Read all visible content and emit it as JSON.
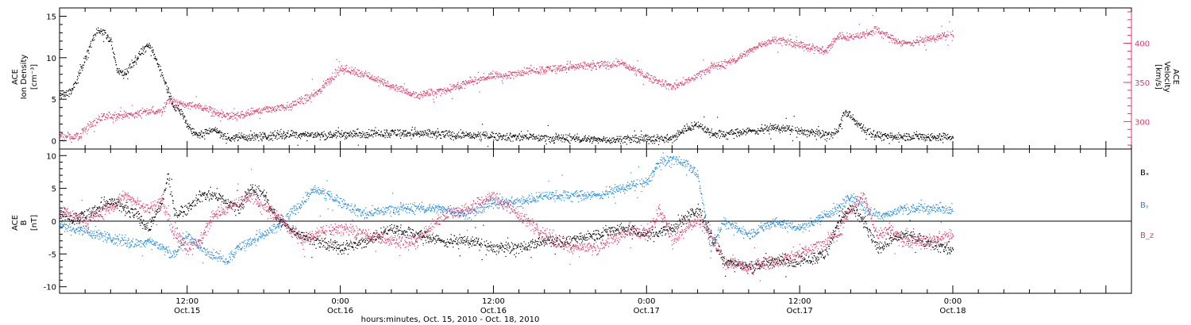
{
  "chart_data": [
    {
      "type": "scatter",
      "panel": "top",
      "ylabel_left": [
        "ACE",
        "Ion Density",
        "[cm⁻³]"
      ],
      "ylabel_right": [
        "ACE",
        "Velocity",
        "[km/s]"
      ],
      "ylim_left": [
        -1,
        16
      ],
      "ylim_right": [
        265,
        445
      ],
      "yticks_left": [
        "0",
        "5",
        "10",
        "15"
      ],
      "yticks_left_values": [
        0,
        5,
        10,
        15
      ],
      "yticks_right": [
        "300",
        "350",
        "400"
      ],
      "yticks_right_values": [
        300,
        350,
        400
      ],
      "series": [
        {
          "axis": "left",
          "color": "#000000",
          "knots_h": [
            0,
            0.5,
            1,
            1.5,
            2,
            2.5,
            3,
            3.5,
            4,
            4.5,
            5,
            5.5,
            6,
            6.5,
            7,
            7.5,
            8,
            8.5,
            9,
            9.5,
            10,
            10.5,
            11,
            11.5,
            12,
            12.5,
            13,
            13.5,
            14,
            15,
            16,
            17,
            18,
            20,
            22,
            24,
            26,
            28,
            30,
            32,
            34,
            36,
            38,
            40,
            42,
            44,
            46,
            48,
            49,
            50,
            51,
            52,
            54,
            56,
            58,
            60,
            60.5,
            61,
            61.5,
            62,
            62.5,
            63,
            63.5,
            64,
            64.5,
            65,
            66,
            67,
            68,
            70
          ],
          "knots_v": [
            5.5,
            5.8,
            6.2,
            8,
            10,
            12,
            13.5,
            13,
            12,
            8.5,
            8,
            9,
            10,
            11,
            11.5,
            10,
            8,
            6,
            4,
            3.5,
            2,
            1,
            0.8,
            1,
            1.5,
            1,
            0.5,
            0.4,
            0.5,
            0.5,
            0.6,
            0.7,
            0.8,
            0.7,
            0.8,
            0.9,
            1.0,
            0.9,
            0.8,
            0.7,
            0.6,
            0.5,
            0.4,
            0.3,
            0.2,
            0.2,
            0.3,
            0.3,
            1.5,
            2,
            1,
            0.8,
            1.2,
            1.6,
            1.2,
            0.8,
            0.7,
            1.5,
            3.5,
            3,
            2,
            1.5,
            1,
            0.8,
            0.6,
            0.5,
            0.5,
            0.6,
            0.5,
            0.5
          ],
          "noise": 0.45
        },
        {
          "axis": "right",
          "color": "#e0386a",
          "knots_h": [
            0,
            1,
            1.5,
            2,
            3,
            4,
            5,
            6,
            7,
            8,
            8.5,
            9,
            10,
            11,
            12,
            13,
            14,
            16,
            18,
            20,
            22,
            24,
            26,
            28,
            30,
            32,
            34,
            35,
            36,
            38,
            40,
            42,
            44,
            46,
            48,
            49,
            50,
            51,
            52,
            53,
            54,
            55,
            56,
            57,
            58,
            59,
            60,
            61,
            62,
            63,
            64,
            65,
            66,
            68,
            70
          ],
          "knots_v": [
            282,
            280,
            281,
            292,
            303,
            308,
            309,
            310,
            314,
            313,
            330,
            325,
            322,
            319,
            313,
            308,
            307,
            316,
            320,
            335,
            368,
            360,
            345,
            334,
            340,
            350,
            360,
            358,
            364,
            367,
            370,
            372,
            375,
            358,
            345,
            350,
            360,
            370,
            373,
            380,
            390,
            400,
            405,
            402,
            398,
            395,
            390,
            410,
            408,
            412,
            418,
            408,
            400,
            405,
            412
          ],
          "noise": 4.5
        }
      ]
    },
    {
      "type": "scatter",
      "panel": "bottom",
      "ylabel_left": [
        "ACE",
        "B",
        "[nT]"
      ],
      "ylim": [
        -11,
        11
      ],
      "yticks": [
        "-10",
        "-5",
        "0",
        "5",
        "10"
      ],
      "yticks_values": [
        -10,
        -5,
        0,
        5,
        10
      ],
      "zero_line": true,
      "legend_position": "right",
      "series": [
        {
          "name": "Bₓ",
          "color": "#000000",
          "knots_h": [
            0,
            1,
            2,
            3,
            4,
            5,
            6,
            7,
            8,
            8.5,
            9,
            10,
            11,
            12,
            13,
            14,
            15,
            16,
            17,
            18,
            19,
            20,
            22,
            24,
            26,
            28,
            30,
            32,
            34,
            36,
            38,
            40,
            42,
            44,
            46,
            48,
            50,
            51,
            52,
            54,
            56,
            58,
            60,
            61,
            62,
            63,
            64,
            65,
            66,
            68,
            70
          ],
          "knots_v": [
            1,
            0.5,
            1,
            2,
            3,
            2,
            1,
            -1,
            3,
            7,
            1,
            2,
            4,
            4,
            3,
            2,
            5,
            4,
            0.5,
            -1,
            -2,
            -3,
            -4,
            -3,
            -1,
            -2,
            -3,
            -3,
            -4,
            -4,
            -3,
            -3,
            -2,
            -1,
            -2,
            -1,
            2,
            -2,
            -6,
            -7,
            -6,
            -6,
            -5,
            0,
            2,
            0,
            -4,
            -3,
            -2,
            -3,
            -4.5
          ],
          "noise": 0.8
        },
        {
          "name": "Bᵧ",
          "color": "#1e88e0",
          "knots_h": [
            0,
            1,
            2,
            3,
            4,
            5,
            6,
            7,
            8,
            9,
            10,
            11,
            12,
            13,
            14,
            15,
            16,
            17,
            18,
            19,
            20,
            22,
            24,
            26,
            28,
            30,
            32,
            34,
            36,
            38,
            40,
            42,
            44,
            46,
            47,
            48,
            49,
            50,
            51,
            52,
            54,
            56,
            58,
            60,
            61,
            62,
            63,
            64,
            65,
            66,
            68,
            70
          ],
          "knots_v": [
            -0.5,
            -1,
            -1.5,
            -2,
            -2.5,
            -3,
            -3.5,
            -3,
            -4,
            -5,
            -2,
            -4,
            -5,
            -6,
            -4,
            -3,
            -2,
            -1,
            1,
            3,
            5,
            3,
            1,
            2,
            2,
            2,
            1,
            3,
            3,
            4,
            4,
            4,
            5,
            6,
            9,
            9.5,
            9,
            7,
            -4,
            0,
            -2,
            0,
            -1,
            1,
            2,
            4,
            2,
            1,
            1,
            2,
            2,
            2
          ],
          "noise": 0.7
        },
        {
          "name": "B_z",
          "color": "#e0386a",
          "knots_h": [
            0,
            1,
            2,
            3,
            4,
            5,
            6,
            7,
            8,
            9,
            10,
            11,
            12,
            13,
            14,
            15,
            16,
            17,
            18,
            19,
            20,
            22,
            24,
            26,
            28,
            30,
            32,
            34,
            36,
            38,
            40,
            42,
            44,
            45,
            46,
            47,
            48,
            49,
            50,
            51,
            52,
            54,
            56,
            58,
            60,
            61,
            62,
            63,
            64,
            65,
            66,
            68,
            70
          ],
          "knots_v": [
            1.5,
            1,
            0,
            1,
            2,
            4,
            3,
            2,
            3,
            -2,
            -4,
            -3,
            1,
            2,
            3,
            4,
            2,
            1,
            -1,
            -3,
            -2,
            -1,
            -2,
            -3,
            -3,
            1,
            2,
            4,
            1,
            -2,
            -4,
            -4,
            -2,
            -1,
            -2,
            2,
            -3,
            -1,
            0,
            -2,
            -6,
            -7,
            -6,
            -5,
            -3,
            -2,
            2,
            4,
            -2,
            -1,
            -3,
            -3,
            -2
          ],
          "noise": 0.9
        }
      ]
    }
  ],
  "x_axis": {
    "xlabel": "hours:minutes, Oct. 15, 2010 - Oct. 18, 2010",
    "range_hours_since_oct15_0000": [
      2,
      86
    ],
    "ticks": [
      {
        "hours": 12,
        "time": "12:00",
        "date": "Oct.15"
      },
      {
        "hours": 24,
        "time": "0:00",
        "date": "Oct.16"
      },
      {
        "hours": 36,
        "time": "12:00",
        "date": "Oct.16"
      },
      {
        "hours": 48,
        "time": "0:00",
        "date": "Oct.17"
      },
      {
        "hours": 60,
        "time": "12:00",
        "date": "Oct.17"
      },
      {
        "hours": 72,
        "time": "0:00",
        "date": "Oct.18"
      }
    ]
  }
}
